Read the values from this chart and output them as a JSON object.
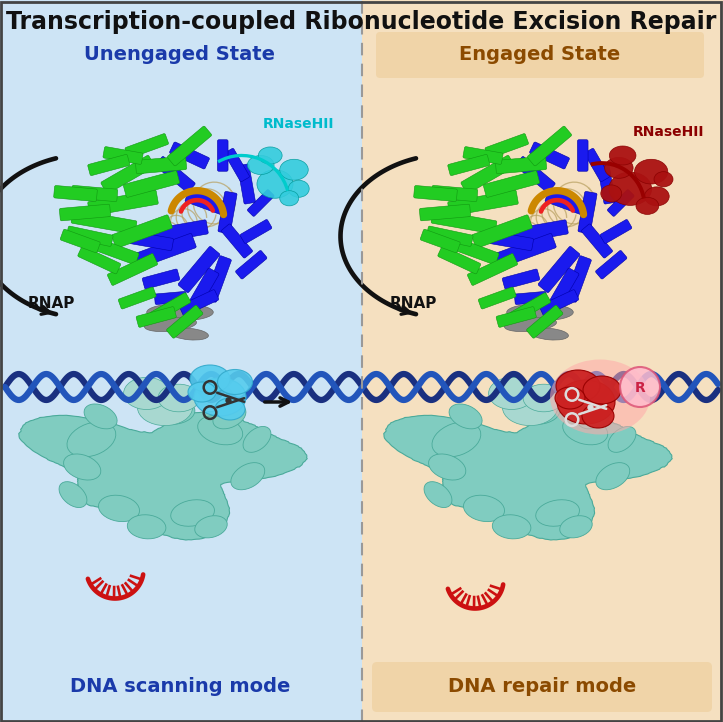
{
  "title": "Transcription-coupled Ribonucleotide Excision Repair",
  "title_fontsize": 17,
  "title_color": "#111111",
  "bg_left_color": "#cde4f5",
  "bg_right_color": "#f5e0c0",
  "left_state_label": "Unengaged State",
  "right_state_label": "Engaged State",
  "left_state_color": "#1a3aaa",
  "right_state_color": "#8b4a00",
  "left_state_bg": "#cde4f5",
  "right_state_bg": "#f0d4a8",
  "left_rnase_label": "RNaseHII",
  "right_rnase_label": "RNaseHII",
  "left_rnase_color": "#00bbcc",
  "right_rnase_color": "#8b0000",
  "rnap_label": "RNAP",
  "rnap_color": "#111111",
  "left_bottom_label": "DNA scanning mode",
  "right_bottom_label": "DNA repair mode",
  "left_bottom_color": "#1a3aaa",
  "right_bottom_color": "#8b4a00",
  "left_bottom_bg": "#cde4f5",
  "right_bottom_bg": "#f0d4a8",
  "separator_color": "#999999",
  "figsize": [
    7.23,
    7.22
  ],
  "dpi": 100
}
